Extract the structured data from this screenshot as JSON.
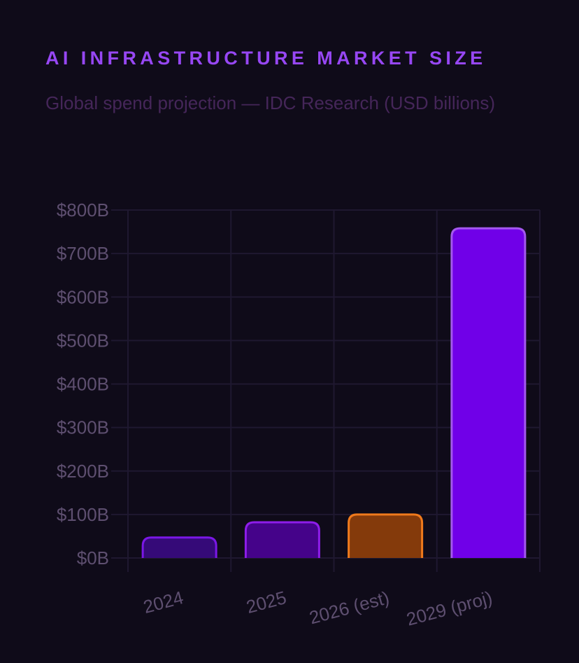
{
  "header": {
    "title": "AI INFRASTRUCTURE MARKET SIZE",
    "subtitle": "Global spend projection — IDC Research (USD billions)"
  },
  "chart_data": {
    "type": "bar",
    "categories": [
      "2024",
      "2025",
      "2026 (est)",
      "2029 (proj)"
    ],
    "values": [
      47,
      82,
      100,
      758
    ],
    "ylim": [
      0,
      800
    ],
    "yticks": [
      0,
      100,
      200,
      300,
      400,
      500,
      600,
      700,
      800
    ],
    "ytick_labels": [
      "$0B",
      "$100B",
      "$200B",
      "$300B",
      "$400B",
      "$500B",
      "$600B",
      "$700B",
      "$800B"
    ],
    "xlabel": "",
    "ylabel": "",
    "grid": true,
    "legend": "none",
    "bar_colors": [
      {
        "fill": "#350a78",
        "stroke": "#7a17e6"
      },
      {
        "fill": "#45038a",
        "stroke": "#8e1dea"
      },
      {
        "fill": "#843a0b",
        "stroke": "#f07a1c"
      },
      {
        "fill": "#7000e8",
        "stroke": "#a458ee"
      }
    ],
    "grid_color": "#1f1830",
    "tick_color": "#5e4f70"
  }
}
